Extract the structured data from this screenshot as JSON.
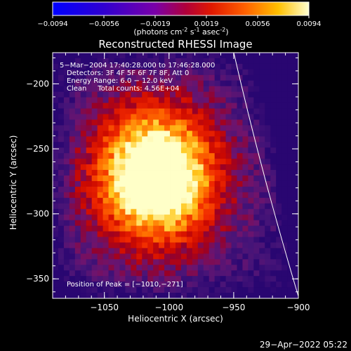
{
  "colorbar": {
    "ticks": [
      "-0.0094",
      "-0.0056",
      "-0.0019",
      "0.0019",
      "0.0056",
      "0.0094"
    ],
    "unit_prefix": "(photons cm",
    "unit_exp1": "-2",
    "unit_mid": " s",
    "unit_exp2": "-1",
    "unit_mid2": " asec",
    "unit_exp3": "-2",
    "unit_suffix": ")"
  },
  "chart_data": {
    "type": "heatmap",
    "title": "Reconstructed RHESSI Image",
    "xlabel": "Heliocentric X (arcsec)",
    "ylabel": "Heliocentric Y (arcsec)",
    "xlim": [
      -1090,
      -900
    ],
    "ylim": [
      -365,
      -176
    ],
    "x_ticks": [
      -1050,
      -1000,
      -950,
      -900
    ],
    "y_ticks": [
      -200,
      -250,
      -300,
      -350
    ],
    "x_tick_labels": [
      "−1050",
      "−1000",
      "−950",
      "−900"
    ],
    "y_tick_labels": [
      "−200",
      "−250",
      "−300",
      "−350"
    ],
    "color_range": [
      -0.0094,
      0.0094
    ],
    "peak": {
      "x": -1010,
      "y": -271
    },
    "annotations": [
      "5−Mar−2004 17:40:28.000 to 17:46:28.000",
      "Detectors: 3F 4F 5F 6F 7F 8F, Att 0",
      "Energy Range: 6.0 − 12.0 keV",
      "Clean     Total counts: 4.56E+04"
    ],
    "peak_label": "Position of Peak = [−1010,−271]"
  },
  "footer": {
    "date": "29−Apr−2022 05:22"
  }
}
